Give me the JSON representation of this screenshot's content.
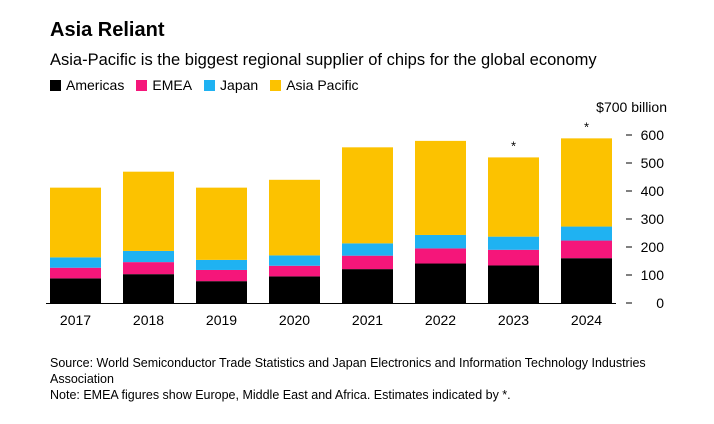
{
  "header": {
    "title": "Asia Reliant",
    "subtitle": "Asia-Pacific is the biggest regional supplier of chips for the global economy"
  },
  "legend": [
    {
      "label": "Americas",
      "color": "#000000"
    },
    {
      "label": "EMEA",
      "color": "#f5167a"
    },
    {
      "label": "Japan",
      "color": "#1fb2f2"
    },
    {
      "label": "Asia Pacific",
      "color": "#fcc200"
    }
  ],
  "chart_data": {
    "type": "bar",
    "stacked": true,
    "categories": [
      "2017",
      "2018",
      "2019",
      "2020",
      "2021",
      "2022",
      "2023",
      "2024"
    ],
    "estimate_marker": "*",
    "estimates": [
      false,
      false,
      false,
      false,
      false,
      false,
      true,
      true
    ],
    "series": [
      {
        "name": "Americas",
        "color": "#000000",
        "values": [
          88,
          103,
          78,
          95,
          121,
          141,
          134,
          160
        ]
      },
      {
        "name": "EMEA",
        "color": "#f5167a",
        "values": [
          38,
          43,
          40,
          38,
          48,
          54,
          56,
          63
        ]
      },
      {
        "name": "Japan",
        "color": "#1fb2f2",
        "values": [
          37,
          40,
          36,
          37,
          44,
          48,
          47,
          50
        ]
      },
      {
        "name": "Asia Pacific",
        "color": "#fcc200",
        "values": [
          249,
          283,
          258,
          270,
          343,
          336,
          283,
          315
        ]
      }
    ],
    "ylim": [
      0,
      700
    ],
    "yticks": [
      0,
      100,
      200,
      300,
      400,
      500,
      600
    ],
    "ytick_labels": [
      "0",
      "100",
      "200",
      "300",
      "400",
      "500",
      "600"
    ],
    "y_unit_label": "$700 billion",
    "xlabel": "",
    "ylabel": "",
    "axis_side": "right",
    "grid": false
  },
  "footer": {
    "source": "Source: World Semiconductor Trade Statistics and Japan Electronics and Information Technology Industries Association",
    "note": "Note: EMEA figures show Europe, Middle East and Africa. Estimates indicated by *."
  }
}
